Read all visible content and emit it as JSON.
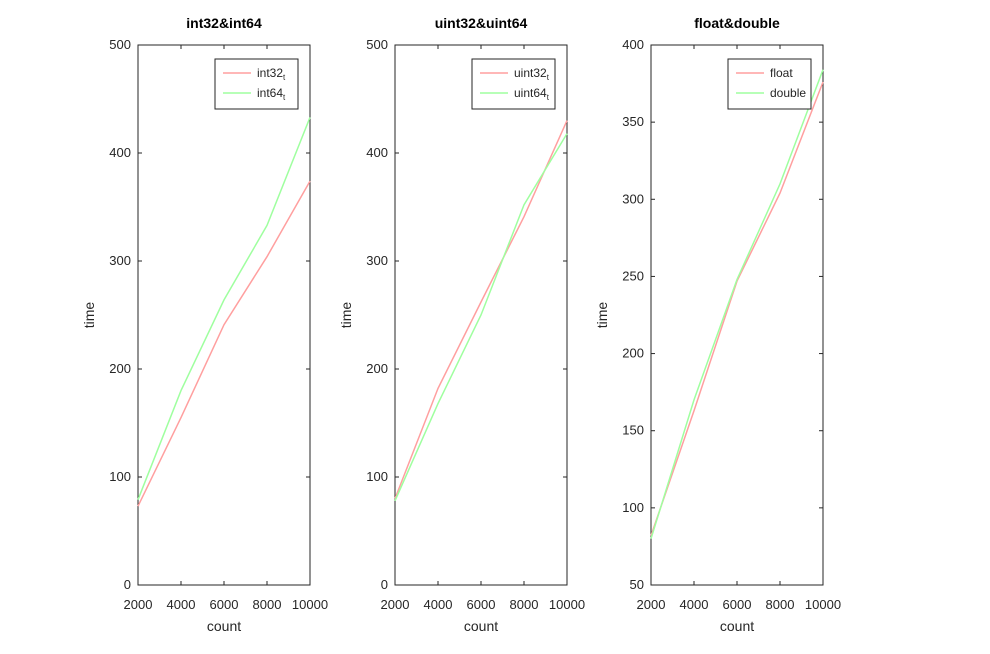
{
  "chart_data": [
    {
      "type": "line",
      "title": "int32&int64",
      "xlabel": "count",
      "ylabel": "time",
      "xlim": [
        2000,
        10000
      ],
      "ylim": [
        0,
        500
      ],
      "xticks": [
        "2000",
        "4000",
        "6000",
        "8000",
        "10000"
      ],
      "yticks": [
        "0",
        "100",
        "200",
        "300",
        "400",
        "500"
      ],
      "legend": "top-right",
      "x": [
        2000,
        4000,
        6000,
        8000,
        10000
      ],
      "series": [
        {
          "name": "int32",
          "name_sub": "t",
          "color": "#ff9f9f",
          "values": [
            73,
            155,
            241,
            304,
            374
          ]
        },
        {
          "name": "int64",
          "name_sub": "t",
          "color": "#9fff9f",
          "values": [
            79,
            180,
            264,
            333,
            433
          ]
        }
      ]
    },
    {
      "type": "line",
      "title": "uint32&uint64",
      "xlabel": "count",
      "ylabel": "time",
      "xlim": [
        2000,
        10000
      ],
      "ylim": [
        0,
        500
      ],
      "xticks": [
        "2000",
        "4000",
        "6000",
        "8000",
        "10000"
      ],
      "yticks": [
        "0",
        "100",
        "200",
        "300",
        "400",
        "500"
      ],
      "legend": "top-right",
      "x": [
        2000,
        4000,
        6000,
        8000,
        10000
      ],
      "series": [
        {
          "name": "uint32",
          "name_sub": "t",
          "color": "#ff9f9f",
          "values": [
            80,
            182,
            262,
            341,
            430
          ]
        },
        {
          "name": "uint64",
          "name_sub": "t",
          "color": "#9fff9f",
          "values": [
            78,
            168,
            250,
            352,
            418
          ]
        }
      ]
    },
    {
      "type": "line",
      "title": "float&double",
      "xlabel": "count",
      "ylabel": "time",
      "xlim": [
        2000,
        10000
      ],
      "ylim": [
        50,
        400
      ],
      "xticks": [
        "2000",
        "4000",
        "6000",
        "8000",
        "10000"
      ],
      "yticks": [
        "50",
        "100",
        "150",
        "200",
        "250",
        "300",
        "350",
        "400"
      ],
      "legend": "top-right",
      "x": [
        2000,
        4000,
        6000,
        8000,
        10000
      ],
      "series": [
        {
          "name": "float",
          "name_sub": "",
          "color": "#ff9f9f",
          "values": [
            82,
            163,
            247,
            304,
            376
          ]
        },
        {
          "name": "double",
          "name_sub": "",
          "color": "#9fff9f",
          "values": [
            80,
            170,
            248,
            310,
            384
          ]
        }
      ]
    }
  ]
}
